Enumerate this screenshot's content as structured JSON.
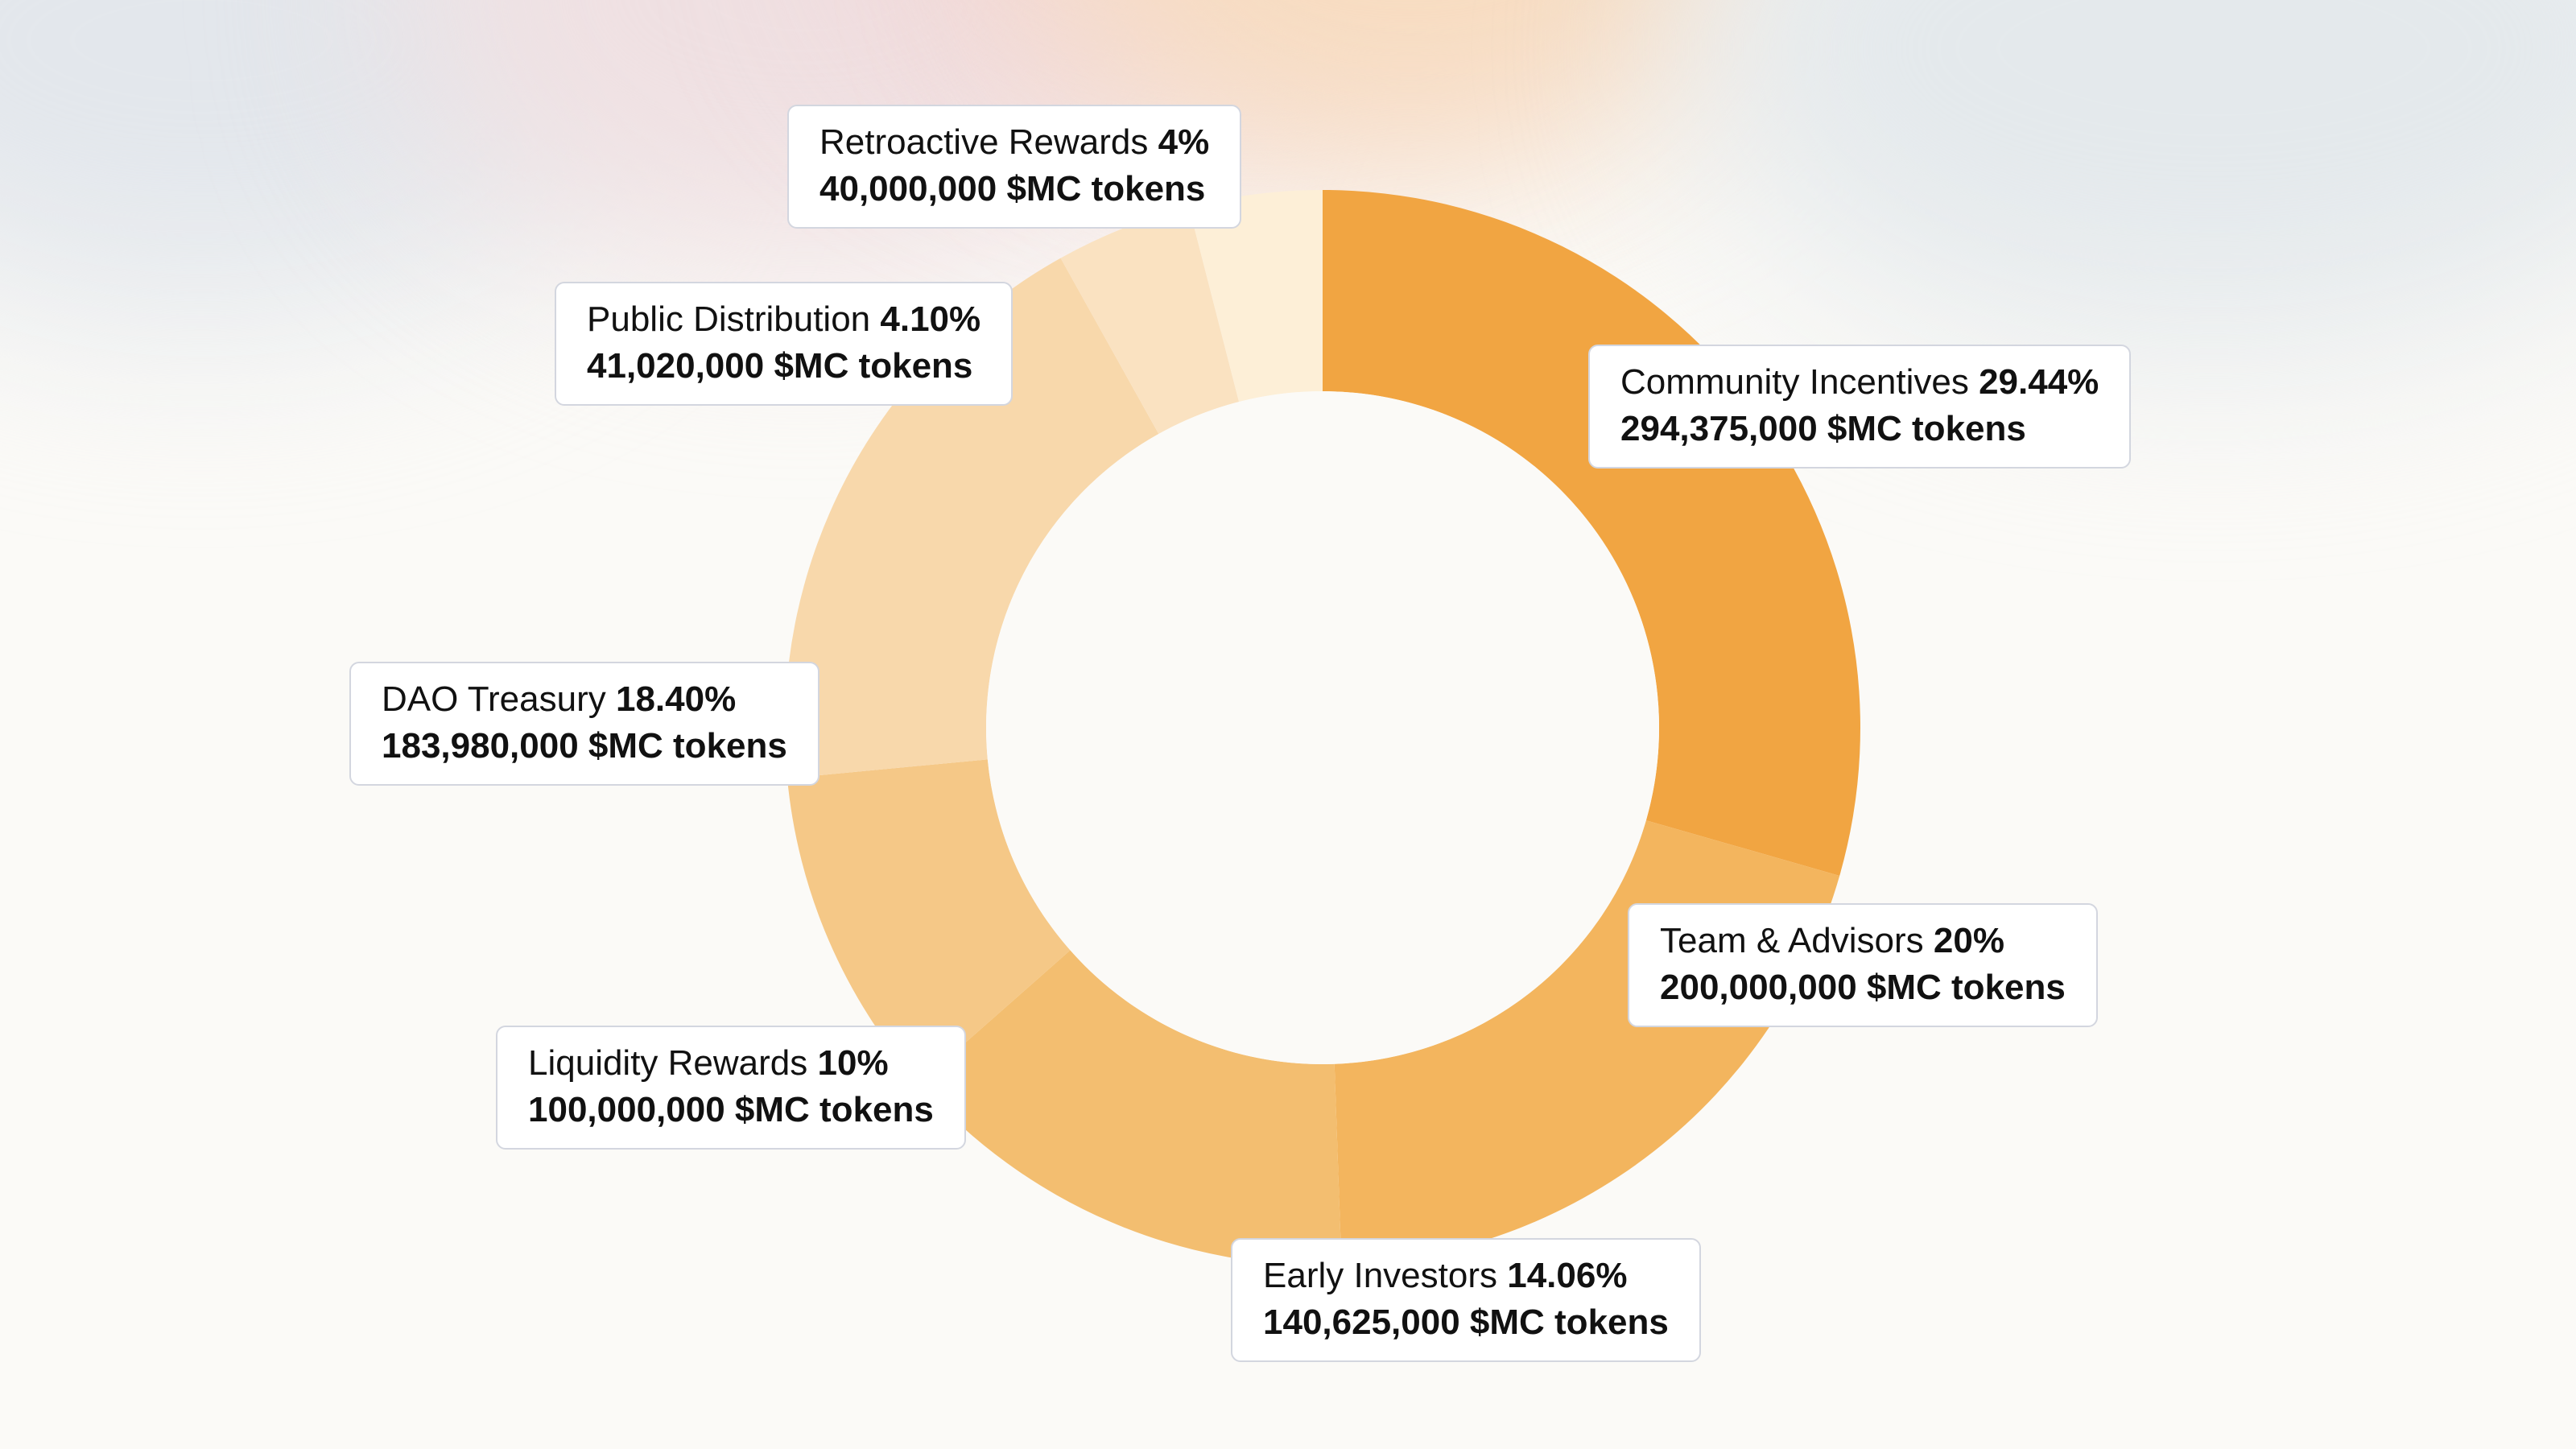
{
  "chart_data": {
    "type": "pie",
    "variant": "donut",
    "slices": [
      {
        "name": "Community Incentives",
        "percent_label": "29.44%",
        "percent": 29.44,
        "tokens_label": "294,375,000 $MC tokens",
        "tokens": 294375000,
        "color": "#f1a542"
      },
      {
        "name": "Team & Advisors",
        "percent_label": "20%",
        "percent": 20,
        "tokens_label": "200,000,000 $MC tokens",
        "tokens": 200000000,
        "color": "#f3b55e"
      },
      {
        "name": "Early Investors",
        "percent_label": "14.06%",
        "percent": 14.06,
        "tokens_label": "140,625,000 $MC tokens",
        "tokens": 140625000,
        "color": "#f3be70"
      },
      {
        "name": "Liquidity Rewards",
        "percent_label": "10%",
        "percent": 10,
        "tokens_label": "100,000,000 $MC tokens",
        "tokens": 100000000,
        "color": "#f5c887"
      },
      {
        "name": "DAO Treasury",
        "percent_label": "18.40%",
        "percent": 18.4,
        "tokens_label": "183,980,000 $MC tokens",
        "tokens": 183980000,
        "color": "#f8d8ab"
      },
      {
        "name": "Public Distribution",
        "percent_label": "4.10%",
        "percent": 4.1,
        "tokens_label": "41,020,000 $MC tokens",
        "tokens": 41020000,
        "color": "#fae2c1"
      },
      {
        "name": "Retroactive Rewards",
        "percent_label": "4%",
        "percent": 4,
        "tokens_label": "40,000,000 $MC tokens",
        "tokens": 40000000,
        "color": "#fdefd7"
      }
    ],
    "start": "12 o'clock",
    "direction": "clockwise",
    "legend": "callout labels around the ring"
  }
}
